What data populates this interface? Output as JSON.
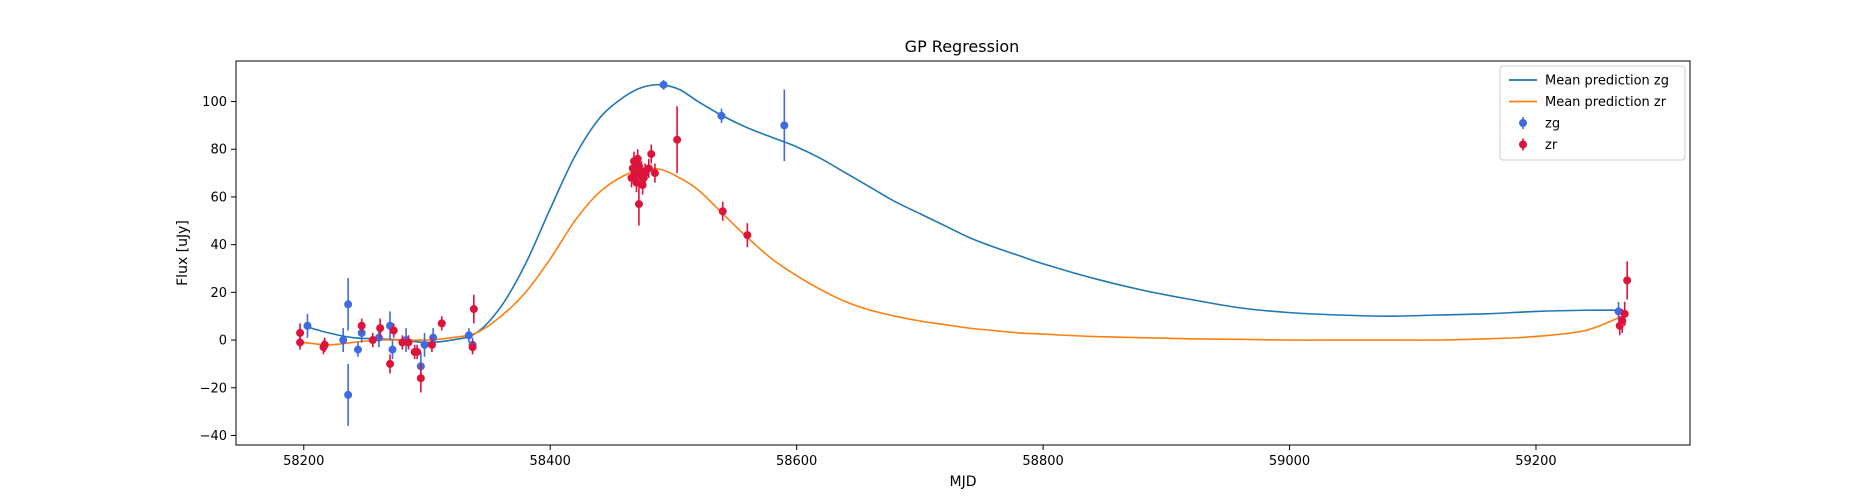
{
  "chart_data": {
    "type": "scatter",
    "title": "GP Regression",
    "xlabel": "MJD",
    "ylabel": "Flux [uJy]",
    "xlim": [
      58145,
      59325
    ],
    "ylim": [
      -44,
      117
    ],
    "xticks": [
      58200,
      58400,
      58600,
      58800,
      59000,
      59200
    ],
    "yticks": [
      -40,
      -20,
      0,
      20,
      40,
      60,
      80,
      100
    ],
    "grid": false,
    "legend_position": "top-right",
    "legend": [
      {
        "label": "Mean prediction zg",
        "kind": "line",
        "color": "#1f77b4"
      },
      {
        "label": "Mean prediction zr",
        "kind": "line",
        "color": "#ff7f0e"
      },
      {
        "label": "zg",
        "kind": "errorbar",
        "color": "#4169e1"
      },
      {
        "label": "zr",
        "kind": "errorbar",
        "color": "#dc143c"
      }
    ],
    "lines": [
      {
        "name": "Mean prediction zg",
        "color": "#1f77b4",
        "x": [
          58200,
          58220,
          58240,
          58260,
          58280,
          58300,
          58320,
          58340,
          58360,
          58380,
          58400,
          58420,
          58440,
          58460,
          58475,
          58490,
          58505,
          58520,
          58540,
          58560,
          58580,
          58600,
          58620,
          58640,
          58660,
          58680,
          58700,
          58720,
          58740,
          58760,
          58780,
          58800,
          58840,
          58880,
          58920,
          58960,
          59000,
          59040,
          59080,
          59120,
          59160,
          59200,
          59240,
          59270
        ],
        "y": [
          6,
          3,
          1,
          0.5,
          0,
          -1,
          0,
          3,
          14,
          32,
          55,
          77,
          93,
          102,
          106,
          107,
          105,
          100,
          94,
          89,
          85,
          81,
          76,
          70,
          64,
          58,
          53,
          48,
          43,
          39,
          35.5,
          32,
          26,
          21,
          17,
          13.5,
          11.5,
          10.5,
          10,
          10.5,
          11,
          12,
          12.5,
          12.5
        ]
      },
      {
        "name": "Mean prediction zr",
        "color": "#ff7f0e",
        "x": [
          58200,
          58220,
          58240,
          58260,
          58280,
          58300,
          58320,
          58340,
          58360,
          58380,
          58400,
          58420,
          58440,
          58460,
          58475,
          58490,
          58505,
          58520,
          58540,
          58560,
          58580,
          58600,
          58620,
          58640,
          58660,
          58680,
          58700,
          58720,
          58740,
          58760,
          58780,
          58800,
          58840,
          58880,
          58920,
          58960,
          59000,
          59040,
          59080,
          59120,
          59160,
          59200,
          59240,
          59270
        ],
        "y": [
          -1,
          -2,
          -1,
          0,
          0,
          0,
          1,
          3,
          10,
          20,
          34,
          50,
          62,
          69,
          71.5,
          71.5,
          68,
          63,
          53,
          43,
          34,
          27,
          21,
          16,
          12.5,
          10,
          8,
          6.5,
          5,
          4,
          3,
          2.5,
          1.5,
          1,
          0.5,
          0.3,
          0,
          0,
          0,
          0,
          0.5,
          1.5,
          4,
          10
        ]
      }
    ],
    "series": [
      {
        "name": "zg",
        "color": "#4169e1",
        "points": [
          {
            "x": 58203,
            "y": 6,
            "err": 5
          },
          {
            "x": 58232,
            "y": 0,
            "err": 5
          },
          {
            "x": 58236,
            "y": 15,
            "err": 11
          },
          {
            "x": 58236,
            "y": -23,
            "err": 13
          },
          {
            "x": 58244,
            "y": -4,
            "err": 3
          },
          {
            "x": 58247,
            "y": 3,
            "err": 4
          },
          {
            "x": 58261,
            "y": 1,
            "err": 4
          },
          {
            "x": 58270,
            "y": 6,
            "err": 6
          },
          {
            "x": 58272,
            "y": -4,
            "err": 4
          },
          {
            "x": 58283,
            "y": 0,
            "err": 5
          },
          {
            "x": 58295,
            "y": -11,
            "err": 6
          },
          {
            "x": 58298,
            "y": -2,
            "err": 5
          },
          {
            "x": 58305,
            "y": 1,
            "err": 4
          },
          {
            "x": 58334,
            "y": 2,
            "err": 3
          },
          {
            "x": 58337,
            "y": -2,
            "err": 3
          },
          {
            "x": 58492,
            "y": 107,
            "err": 2
          },
          {
            "x": 58539,
            "y": 94,
            "err": 3
          },
          {
            "x": 58590,
            "y": 90,
            "err": 15
          },
          {
            "x": 59267,
            "y": 12,
            "err": 4
          }
        ]
      },
      {
        "name": "zr",
        "color": "#dc143c",
        "points": [
          {
            "x": 58197,
            "y": 3,
            "err": 4
          },
          {
            "x": 58197,
            "y": -1,
            "err": 3
          },
          {
            "x": 58216,
            "y": -3,
            "err": 3
          },
          {
            "x": 58217,
            "y": -2,
            "err": 3
          },
          {
            "x": 58247,
            "y": 6,
            "err": 3
          },
          {
            "x": 58256,
            "y": 0,
            "err": 3
          },
          {
            "x": 58262,
            "y": 5,
            "err": 4
          },
          {
            "x": 58270,
            "y": -10,
            "err": 4
          },
          {
            "x": 58273,
            "y": 4,
            "err": 3
          },
          {
            "x": 58280,
            "y": -1,
            "err": 3
          },
          {
            "x": 58285,
            "y": -1,
            "err": 3
          },
          {
            "x": 58290,
            "y": -5,
            "err": 3
          },
          {
            "x": 58292,
            "y": -5,
            "err": 3
          },
          {
            "x": 58295,
            "y": -16,
            "err": 6
          },
          {
            "x": 58304,
            "y": -2,
            "err": 3
          },
          {
            "x": 58312,
            "y": 7,
            "err": 3
          },
          {
            "x": 58337,
            "y": -3,
            "err": 3
          },
          {
            "x": 58338,
            "y": 13,
            "err": 6
          },
          {
            "x": 58466,
            "y": 68,
            "err": 4
          },
          {
            "x": 58467,
            "y": 72,
            "err": 4
          },
          {
            "x": 58468,
            "y": 75,
            "err": 4
          },
          {
            "x": 58469,
            "y": 70,
            "err": 4
          },
          {
            "x": 58470,
            "y": 66,
            "err": 4
          },
          {
            "x": 58471,
            "y": 76,
            "err": 4
          },
          {
            "x": 58472,
            "y": 73,
            "err": 4
          },
          {
            "x": 58472,
            "y": 57,
            "err": 9
          },
          {
            "x": 58473,
            "y": 69,
            "err": 4
          },
          {
            "x": 58474,
            "y": 71,
            "err": 4
          },
          {
            "x": 58475,
            "y": 65,
            "err": 4
          },
          {
            "x": 58476,
            "y": 68,
            "err": 4
          },
          {
            "x": 58477,
            "y": 70,
            "err": 4
          },
          {
            "x": 58480,
            "y": 72,
            "err": 4
          },
          {
            "x": 58482,
            "y": 78,
            "err": 4
          },
          {
            "x": 58485,
            "y": 70,
            "err": 4
          },
          {
            "x": 58503,
            "y": 84,
            "err": 14
          },
          {
            "x": 58540,
            "y": 54,
            "err": 4
          },
          {
            "x": 58560,
            "y": 44,
            "err": 5
          },
          {
            "x": 59268,
            "y": 6,
            "err": 4
          },
          {
            "x": 59270,
            "y": 8,
            "err": 5
          },
          {
            "x": 59272,
            "y": 11,
            "err": 5
          },
          {
            "x": 59274,
            "y": 25,
            "err": 8
          }
        ]
      }
    ]
  }
}
